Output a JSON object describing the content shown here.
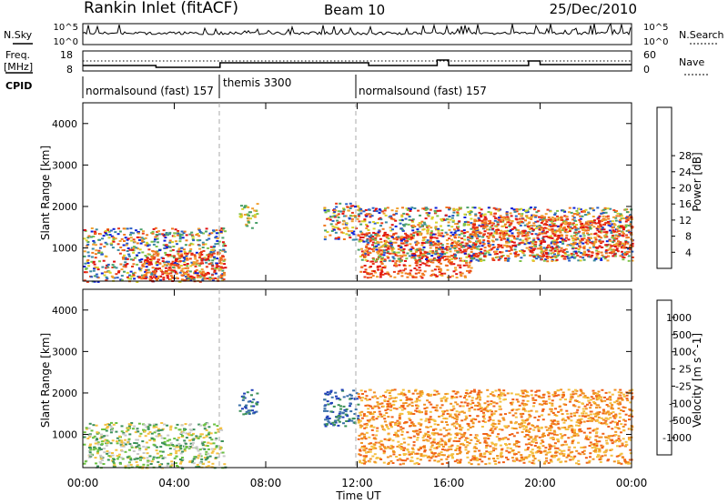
{
  "header": {
    "station": "Rankin Inlet (fitACF)",
    "beam": "Beam 10",
    "date": "25/Dec/2010"
  },
  "noise_panel": {
    "left_label": "N.Sky",
    "right_label": "N.Search",
    "left_ticks": [
      "10^5",
      "10^0"
    ],
    "right_ticks": [
      "10^5",
      "10^0"
    ]
  },
  "freq_panel": {
    "left_label_1": "Freq.",
    "left_label_2": "[MHz]",
    "right_label": "Nave",
    "left_ticks": [
      "18",
      "8"
    ],
    "right_ticks": [
      "60",
      "0"
    ]
  },
  "cpid_panel": {
    "label": "CPID",
    "segments": [
      {
        "start_hour": 0.0,
        "text": "normalsound (fast) 157"
      },
      {
        "start_hour": 6.0,
        "text": "themis 3300"
      },
      {
        "start_hour": 12.0,
        "text": "normalsound (fast) 157"
      }
    ]
  },
  "time_axis": {
    "label": "Time UT",
    "ticks": [
      "00:00",
      "04:00",
      "08:00",
      "12:00",
      "16:00",
      "20:00",
      "00:00"
    ]
  },
  "chart_data": [
    {
      "type": "heatmap",
      "name": "power",
      "ylabel": "Slant Range [km]",
      "yticks": [
        "1000",
        "2000",
        "3000",
        "4000"
      ],
      "ylim": [
        200,
        4500
      ],
      "xlim_hours": [
        0,
        24
      ],
      "colorbar_label": "Power [dB]",
      "colorbar_ticks": [
        "4",
        "8",
        "12",
        "16",
        "20",
        "24",
        "28"
      ],
      "colorbar_colors": [
        "#0b1fd8",
        "#2a5fc4",
        "#3a8aa0",
        "#4aa06a",
        "#7fc24a",
        "#d8d42a",
        "#f0a030",
        "#f07820",
        "#e83a18",
        "#e01010"
      ],
      "clusters": [
        {
          "x": [
            0.0,
            6.2
          ],
          "y": [
            200,
            1500
          ],
          "level": "mixed-low"
        },
        {
          "x": [
            2.5,
            6.2
          ],
          "y": [
            200,
            900
          ],
          "level": "high"
        },
        {
          "x": [
            6.8,
            7.6
          ],
          "y": [
            1500,
            2100
          ],
          "level": "medium"
        },
        {
          "x": [
            10.5,
            12.0
          ],
          "y": [
            1200,
            2100
          ],
          "level": "mixed"
        },
        {
          "x": [
            12.0,
            17.0
          ],
          "y": [
            300,
            1400
          ],
          "level": "high"
        },
        {
          "x": [
            12.0,
            24.0
          ],
          "y": [
            700,
            2000
          ],
          "level": "mixed"
        },
        {
          "x": [
            17.0,
            24.0
          ],
          "y": [
            800,
            1800
          ],
          "level": "high"
        }
      ]
    },
    {
      "type": "heatmap",
      "name": "velocity",
      "ylabel": "Slant Range [km]",
      "yticks": [
        "1000",
        "2000",
        "3000",
        "4000"
      ],
      "ylim": [
        200,
        4500
      ],
      "xlim_hours": [
        0,
        24
      ],
      "colorbar_label": "Velocity [m s^-1]",
      "colorbar_ticks": [
        "1000",
        "500",
        "100",
        "25",
        "-25",
        "-100",
        "-500",
        "-1000"
      ],
      "colorbar_colors": [
        "#2040b8",
        "#3a70a8",
        "#3a9058",
        "#6ac040",
        "#c8c8c8",
        "#f4c040",
        "#f09020",
        "#f06018",
        "#e82810"
      ],
      "clusters": [
        {
          "x": [
            0.0,
            6.2
          ],
          "y": [
            200,
            1300
          ],
          "level": "mixed-slow"
        },
        {
          "x": [
            6.8,
            7.6
          ],
          "y": [
            1500,
            2100
          ],
          "level": "positive"
        },
        {
          "x": [
            10.5,
            12.0
          ],
          "y": [
            1200,
            2100
          ],
          "level": "positive"
        },
        {
          "x": [
            12.0,
            24.0
          ],
          "y": [
            300,
            2100
          ],
          "level": "negative"
        }
      ]
    }
  ]
}
